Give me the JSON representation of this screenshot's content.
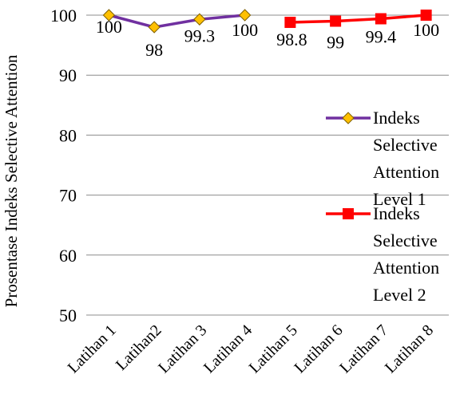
{
  "chart_data": {
    "type": "line",
    "title": "",
    "xlabel": "",
    "ylabel": "Prosentase Indeks Selective Attention",
    "ylim": [
      50,
      100
    ],
    "yticks": [
      50,
      60,
      70,
      80,
      90,
      100
    ],
    "grid": true,
    "legend_position": "right",
    "categories": [
      "Latihan 1",
      "Latihan2",
      "Latihan 3",
      "Latihan 4",
      "Latihan 5",
      "Latihan 6",
      "Latihan 7",
      "Latihan 8"
    ],
    "series": [
      {
        "name": "Indeks Selective Attention Level 1",
        "legend_lines": [
          "Indeks",
          "Selective",
          "Attention",
          "Level 1"
        ],
        "line_color": "#7030a0",
        "marker": "diamond",
        "marker_color": "#ffc000",
        "points": [
          {
            "index": 0,
            "value": 100,
            "label": "100"
          },
          {
            "index": 1,
            "value": 98,
            "label": "98"
          },
          {
            "index": 2,
            "value": 99.3,
            "label": "99.3"
          },
          {
            "index": 3,
            "value": 100,
            "label": "100"
          }
        ]
      },
      {
        "name": "Indeks Selective Attention Level 2",
        "legend_lines": [
          "Indeks",
          "Selective",
          "Attention",
          "Level 2"
        ],
        "line_color": "#ff0000",
        "marker": "square",
        "marker_color": "#ff0000",
        "points": [
          {
            "index": 4,
            "value": 98.8,
            "label": "98.8"
          },
          {
            "index": 5,
            "value": 99,
            "label": "99"
          },
          {
            "index": 6,
            "value": 99.4,
            "label": "99.4"
          },
          {
            "index": 7,
            "value": 100,
            "label": "100"
          }
        ]
      }
    ]
  }
}
